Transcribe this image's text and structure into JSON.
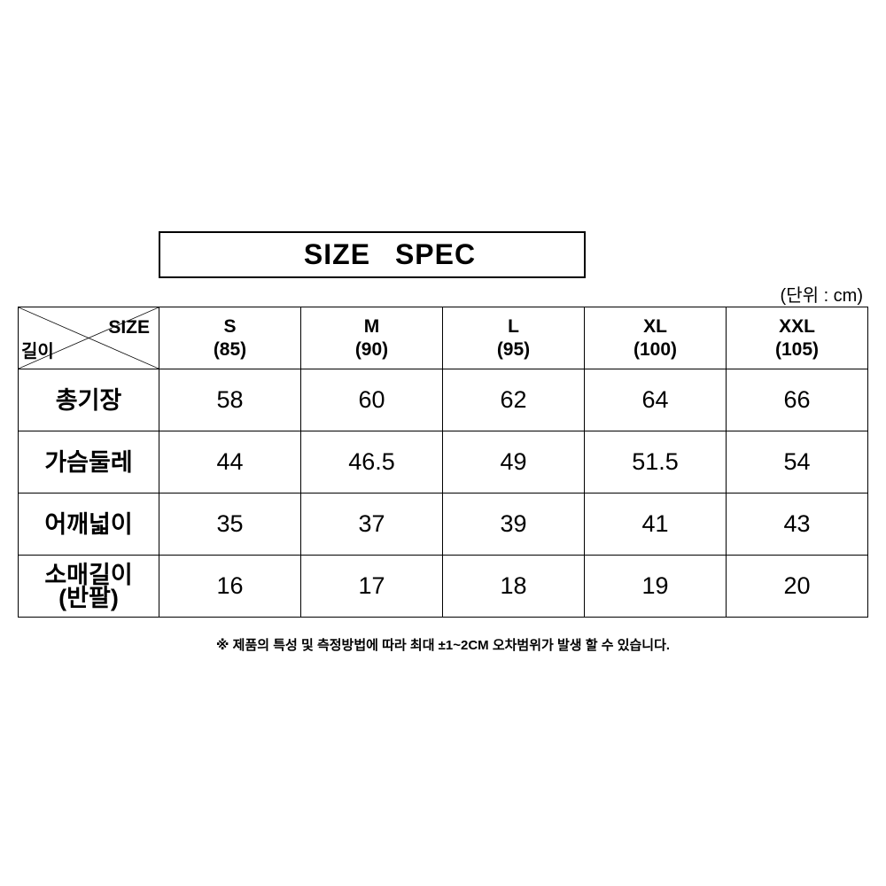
{
  "title": "SIZE SPEC",
  "unit_label": "(단위 : cm)",
  "table": {
    "corner_top": "SIZE",
    "corner_bottom": "길이",
    "sizes": [
      {
        "name": "S",
        "num": "(85)"
      },
      {
        "name": "M",
        "num": "(90)"
      },
      {
        "name": "L",
        "num": "(95)"
      },
      {
        "name": "XL",
        "num": "(100)"
      },
      {
        "name": "XXL",
        "num": "(105)"
      }
    ],
    "rows": [
      {
        "label": "총기장",
        "label2": "",
        "values": [
          "58",
          "60",
          "62",
          "64",
          "66"
        ]
      },
      {
        "label": "가슴둘레",
        "label2": "",
        "values": [
          "44",
          "46.5",
          "49",
          "51.5",
          "54"
        ]
      },
      {
        "label": "어깨넓이",
        "label2": "",
        "values": [
          "35",
          "37",
          "39",
          "41",
          "43"
        ]
      },
      {
        "label": "소매길이",
        "label2": "(반팔)",
        "values": [
          "16",
          "17",
          "18",
          "19",
          "20"
        ]
      }
    ]
  },
  "note": "※ 제품의 특성 및 측정방법에 따라 최대 ±1~2CM 오차범위가 발생 할 수 있습니다."
}
